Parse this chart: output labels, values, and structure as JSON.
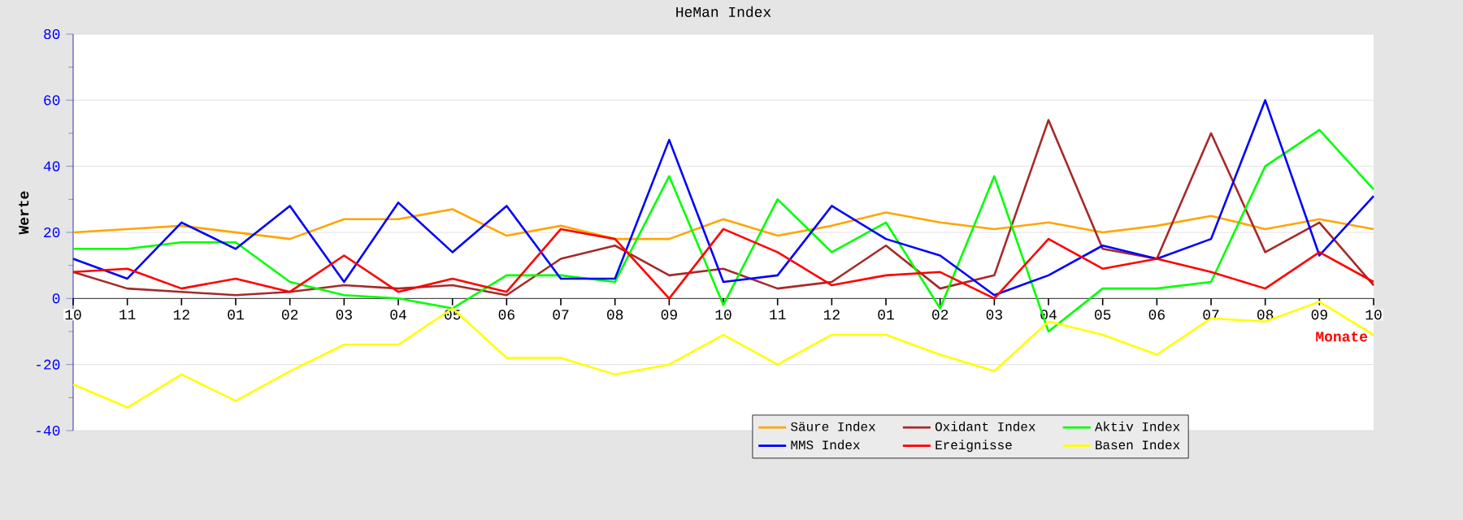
{
  "chart_data": {
    "type": "line",
    "title": "HeMan Index",
    "xlabel": "Monate",
    "ylabel": "Werte",
    "categories": [
      "10",
      "11",
      "12",
      "01",
      "02",
      "03",
      "04",
      "05",
      "06",
      "07",
      "08",
      "09",
      "10",
      "11",
      "12",
      "01",
      "02",
      "03",
      "04",
      "05",
      "06",
      "07",
      "08",
      "09",
      "10"
    ],
    "series": [
      {
        "name": "Säure Index",
        "color": "#ffa500",
        "values": [
          20,
          21,
          22,
          20,
          18,
          24,
          24,
          27,
          19,
          22,
          18,
          18,
          24,
          19,
          22,
          26,
          23,
          21,
          23,
          20,
          22,
          25,
          21,
          24,
          21
        ]
      },
      {
        "name": "Oxidant Index",
        "color": "#a52a2a",
        "values": [
          8,
          3,
          2,
          1,
          2,
          4,
          3,
          4,
          1,
          12,
          16,
          7,
          9,
          3,
          5,
          16,
          3,
          7,
          54,
          15,
          12,
          50,
          14,
          23,
          4
        ]
      },
      {
        "name": "Aktiv Index",
        "color": "#00ff00",
        "values": [
          15,
          15,
          17,
          17,
          5,
          1,
          0,
          -3,
          7,
          7,
          5,
          37,
          -2,
          30,
          14,
          23,
          -3,
          37,
          -10,
          3,
          3,
          5,
          40,
          51,
          33
        ]
      },
      {
        "name": "MMS Index",
        "color": "#0000ff",
        "values": [
          12,
          6,
          23,
          15,
          28,
          5,
          29,
          14,
          28,
          6,
          6,
          48,
          5,
          7,
          28,
          18,
          13,
          1,
          7,
          16,
          12,
          18,
          60,
          13,
          31
        ]
      },
      {
        "name": "Ereignisse",
        "color": "#ff0000",
        "values": [
          8,
          9,
          3,
          6,
          2,
          13,
          2,
          6,
          2,
          21,
          18,
          0,
          21,
          14,
          4,
          7,
          8,
          0,
          18,
          9,
          12,
          8,
          3,
          14,
          5
        ]
      },
      {
        "name": "Basen Index",
        "color": "#ffff00",
        "values": [
          -26,
          -33,
          -23,
          -31,
          -22,
          -14,
          -14,
          -3,
          -18,
          -18,
          -23,
          -20,
          -11,
          -20,
          -11,
          -11,
          -17,
          -22,
          -7,
          -11,
          -17,
          -6,
          -7,
          -1,
          -11
        ]
      }
    ],
    "ylim": [
      -40,
      80
    ],
    "yticks": [
      -40,
      -20,
      0,
      20,
      40,
      60,
      80
    ],
    "grid": "y",
    "legend": "bottom",
    "marker": "none",
    "line_style": "solid"
  }
}
